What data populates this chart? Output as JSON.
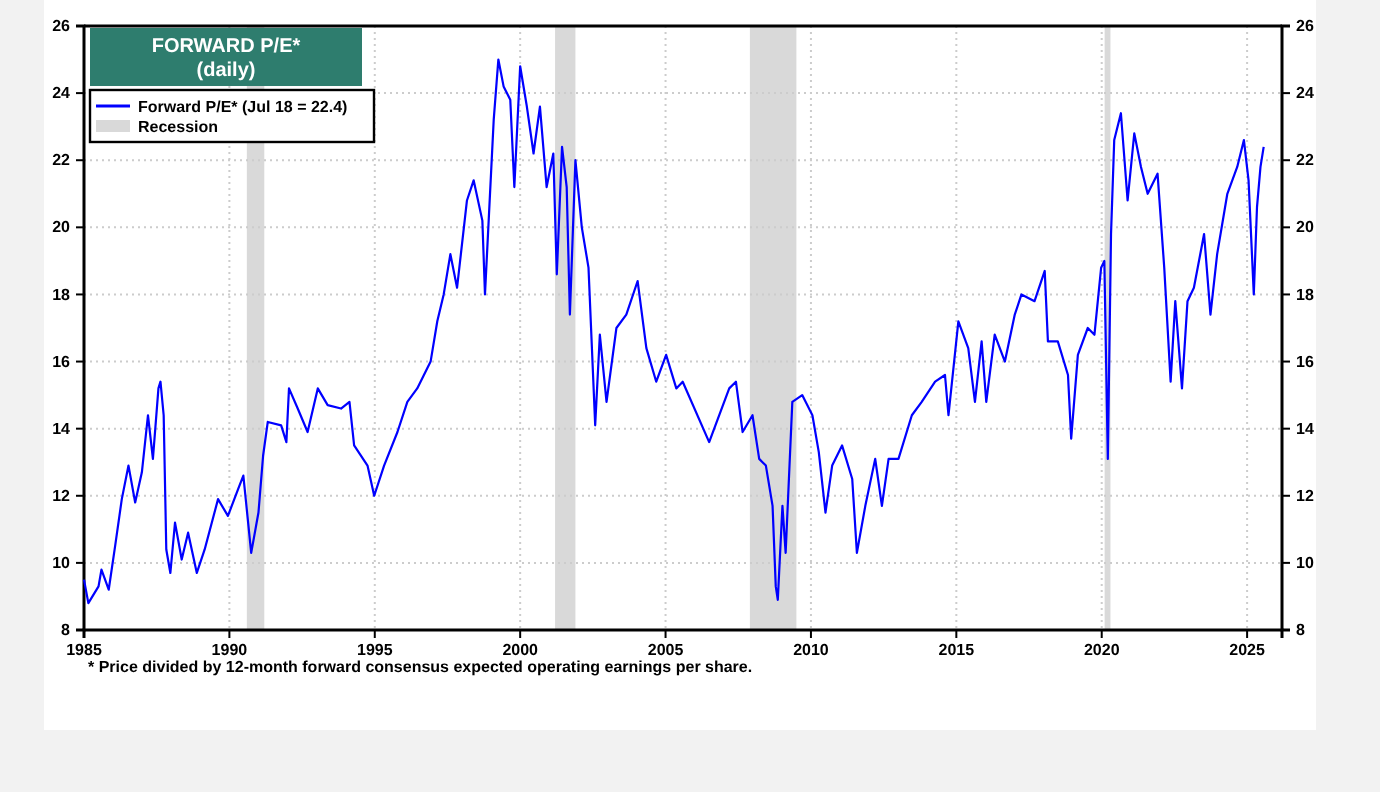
{
  "chart_data": {
    "type": "line",
    "title": "FORWARD P/E*",
    "subtitle": "(daily)",
    "annotations": [
      "* Price divided by 12-month forward consensus expected operating earnings per share."
    ],
    "xlim": [
      1985,
      2026.2
    ],
    "xticks": [
      1985,
      1990,
      1995,
      2000,
      2005,
      2010,
      2015,
      2020,
      2025
    ],
    "ylim": [
      8,
      26
    ],
    "yticks": [
      8,
      10,
      12,
      14,
      16,
      18,
      20,
      22,
      24,
      26
    ],
    "y2lim": [
      8,
      26
    ],
    "y2ticks": [
      8,
      10,
      12,
      14,
      16,
      18,
      20,
      22,
      24,
      26
    ],
    "grid": true,
    "legend": "top left",
    "line_style": "solid",
    "marker": "none",
    "bands": [
      {
        "axis": "x",
        "from": 1990.6,
        "to": 1991.2,
        "label": "Recession",
        "color": "#d9d9d9"
      },
      {
        "axis": "x",
        "from": 2001.2,
        "to": 2001.9,
        "color": "#d9d9d9"
      },
      {
        "axis": "x",
        "from": 2007.9,
        "to": 2009.5,
        "color": "#d9d9d9"
      },
      {
        "axis": "x",
        "from": 2020.1,
        "to": 2020.3,
        "color": "#d9d9d9"
      }
    ],
    "series": [
      {
        "name": "Forward P/E* (Jul 18 = 22.4)",
        "color": "#0000ff",
        "x": [
          1985.0,
          1985.15,
          1985.5,
          1985.6,
          1985.85,
          1986.07,
          1986.3,
          1986.53,
          1986.76,
          1986.99,
          1987.2,
          1987.37,
          1987.56,
          1987.63,
          1987.74,
          1987.83,
          1987.97,
          1988.13,
          1988.36,
          1988.58,
          1988.88,
          1989.15,
          1989.61,
          1989.95,
          1990.3,
          1990.48,
          1990.75,
          1991.0,
          1991.16,
          1991.32,
          1991.78,
          1991.96,
          1992.05,
          1992.35,
          1992.69,
          1993.04,
          1993.38,
          1993.84,
          1994.13,
          1994.29,
          1994.75,
          1994.98,
          1995.32,
          1995.78,
          1996.12,
          1996.46,
          1996.69,
          1996.92,
          1997.15,
          1997.37,
          1997.6,
          1997.83,
          1998.17,
          1998.4,
          1998.7,
          1998.79,
          1999.09,
          1999.25,
          1999.43,
          1999.66,
          1999.8,
          2000.0,
          2000.23,
          2000.46,
          2000.68,
          2000.91,
          2001.14,
          2001.26,
          2001.44,
          2001.6,
          2001.71,
          2001.9,
          2002.12,
          2002.35,
          2002.58,
          2002.74,
          2002.97,
          2003.31,
          2003.65,
          2004.04,
          2004.34,
          2004.68,
          2005.02,
          2005.37,
          2005.59,
          2006.5,
          2007.19,
          2007.42,
          2007.65,
          2007.99,
          2008.22,
          2008.45,
          2008.68,
          2008.79,
          2008.86,
          2009.02,
          2009.13,
          2009.36,
          2009.7,
          2010.05,
          2010.27,
          2010.5,
          2010.73,
          2011.07,
          2011.42,
          2011.58,
          2011.87,
          2012.21,
          2012.44,
          2012.67,
          2013.01,
          2013.47,
          2013.81,
          2014.27,
          2014.61,
          2014.73,
          2015.07,
          2015.41,
          2015.64,
          2015.87,
          2016.03,
          2016.32,
          2016.67,
          2017.01,
          2017.24,
          2017.69,
          2018.04,
          2018.15,
          2018.49,
          2018.84,
          2018.95,
          2019.18,
          2019.52,
          2019.75,
          2019.98,
          2020.09,
          2020.21,
          2020.32,
          2020.43,
          2020.66,
          2020.89,
          2021.12,
          2021.35,
          2021.58,
          2021.92,
          2022.15,
          2022.37,
          2022.53,
          2022.76,
          2022.95,
          2023.17,
          2023.52,
          2023.74,
          2023.97,
          2024.32,
          2024.66,
          2024.89,
          2025.05,
          2025.23,
          2025.34,
          2025.46,
          2025.57
        ],
        "values": [
          9.5,
          8.8,
          9.3,
          9.8,
          9.2,
          10.5,
          11.9,
          12.9,
          11.8,
          12.7,
          14.4,
          13.1,
          15.2,
          15.4,
          14.4,
          10.4,
          9.7,
          11.2,
          10.1,
          10.9,
          9.7,
          10.4,
          11.9,
          11.4,
          12.2,
          12.6,
          10.3,
          11.5,
          13.2,
          14.2,
          14.1,
          13.6,
          15.2,
          14.6,
          13.9,
          15.2,
          14.7,
          14.6,
          14.8,
          13.5,
          12.9,
          12.0,
          12.9,
          13.9,
          14.8,
          15.2,
          15.6,
          16.0,
          17.2,
          18.0,
          19.2,
          18.2,
          20.8,
          21.4,
          20.2,
          18.0,
          23.2,
          25.0,
          24.2,
          23.8,
          21.2,
          24.8,
          23.6,
          22.2,
          23.6,
          21.2,
          22.2,
          18.6,
          22.4,
          21.2,
          17.4,
          22.0,
          20.0,
          18.8,
          14.1,
          16.8,
          14.8,
          17.0,
          17.4,
          18.4,
          16.4,
          15.4,
          16.2,
          15.2,
          15.4,
          13.6,
          15.2,
          15.4,
          13.9,
          14.4,
          13.1,
          12.9,
          11.7,
          9.3,
          8.9,
          11.7,
          10.3,
          14.8,
          15.0,
          14.4,
          13.3,
          11.5,
          12.9,
          13.5,
          12.5,
          10.3,
          11.7,
          13.1,
          11.7,
          13.1,
          13.1,
          14.4,
          14.8,
          15.4,
          15.6,
          14.4,
          17.2,
          16.4,
          14.8,
          16.6,
          14.8,
          16.8,
          16.0,
          17.4,
          18.0,
          17.8,
          18.7,
          16.6,
          16.6,
          15.6,
          13.7,
          16.2,
          17.0,
          16.8,
          18.8,
          19.0,
          13.1,
          19.8,
          22.6,
          23.4,
          20.8,
          22.8,
          21.8,
          21.0,
          21.6,
          18.8,
          15.4,
          17.8,
          15.2,
          17.8,
          18.2,
          19.8,
          17.4,
          19.2,
          21.0,
          21.8,
          22.6,
          21.4,
          18.0,
          20.6,
          21.8,
          22.4
        ]
      }
    ]
  }
}
